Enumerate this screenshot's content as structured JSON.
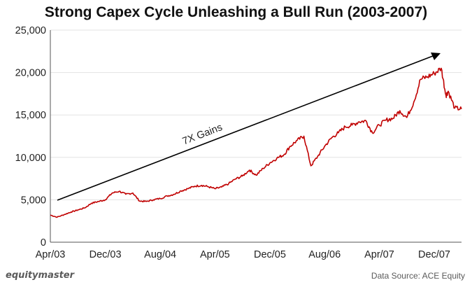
{
  "chart_data": {
    "type": "line",
    "title": "Strong Capex Cycle Unleashing a Bull Run (2003-2007)",
    "xlabel": "",
    "ylabel": "",
    "ylim": [
      0,
      25000
    ],
    "y_ticks": [
      0,
      5000,
      10000,
      15000,
      20000,
      25000
    ],
    "y_tick_labels": [
      "0",
      "5,000",
      "10,000",
      "15,000",
      "20,000",
      "25,000"
    ],
    "x_ticks": [
      "2003-04",
      "2003-12",
      "2004-08",
      "2005-04",
      "2005-12",
      "2006-08",
      "2007-04",
      "2007-12"
    ],
    "x_tick_labels": [
      "Apr/03",
      "Dec/03",
      "Aug/04",
      "Apr/05",
      "Dec/05",
      "Aug/06",
      "Apr/07",
      "Dec/07"
    ],
    "xlim": [
      "2003-04-01",
      "2008-03-31"
    ],
    "grid": true,
    "line_color": "#c00000",
    "series": [
      {
        "points": [
          [
            "2003-04-01",
            3200
          ],
          [
            "2003-05-01",
            2950
          ],
          [
            "2003-06-01",
            3250
          ],
          [
            "2003-07-01",
            3550
          ],
          [
            "2003-08-01",
            3800
          ],
          [
            "2003-09-01",
            4050
          ],
          [
            "2003-10-01",
            4600
          ],
          [
            "2003-11-01",
            4800
          ],
          [
            "2003-12-01",
            5000
          ],
          [
            "2004-01-01",
            5800
          ],
          [
            "2004-02-01",
            6000
          ],
          [
            "2004-03-01",
            5650
          ],
          [
            "2004-04-01",
            5800
          ],
          [
            "2004-05-01",
            4850
          ],
          [
            "2004-06-01",
            4800
          ],
          [
            "2004-07-01",
            5000
          ],
          [
            "2004-08-01",
            5150
          ],
          [
            "2004-09-01",
            5450
          ],
          [
            "2004-10-01",
            5650
          ],
          [
            "2004-11-01",
            6050
          ],
          [
            "2004-12-01",
            6300
          ],
          [
            "2005-01-01",
            6600
          ],
          [
            "2005-02-01",
            6700
          ],
          [
            "2005-03-01",
            6550
          ],
          [
            "2005-04-01",
            6300
          ],
          [
            "2005-05-01",
            6500
          ],
          [
            "2005-06-01",
            6900
          ],
          [
            "2005-07-01",
            7450
          ],
          [
            "2005-08-01",
            7800
          ],
          [
            "2005-09-01",
            8500
          ],
          [
            "2005-10-01",
            7900
          ],
          [
            "2005-11-01",
            8700
          ],
          [
            "2005-12-01",
            9350
          ],
          [
            "2006-01-01",
            9900
          ],
          [
            "2006-02-01",
            10300
          ],
          [
            "2006-03-01",
            11300
          ],
          [
            "2006-04-01",
            12000
          ],
          [
            "2006-05-01",
            12500
          ],
          [
            "2006-06-01",
            9000
          ],
          [
            "2006-07-01",
            10100
          ],
          [
            "2006-08-01",
            11300
          ],
          [
            "2006-09-01",
            12300
          ],
          [
            "2006-10-01",
            12900
          ],
          [
            "2006-11-01",
            13600
          ],
          [
            "2006-12-01",
            13800
          ],
          [
            "2007-01-01",
            14200
          ],
          [
            "2007-02-01",
            14300
          ],
          [
            "2007-03-01",
            12900
          ],
          [
            "2007-04-01",
            13800
          ],
          [
            "2007-05-01",
            14400
          ],
          [
            "2007-06-01",
            14600
          ],
          [
            "2007-07-01",
            15500
          ],
          [
            "2007-08-01",
            14700
          ],
          [
            "2007-09-01",
            16500
          ],
          [
            "2007-10-01",
            19200
          ],
          [
            "2007-11-01",
            19500
          ],
          [
            "2007-12-01",
            19900
          ],
          [
            "2008-01-01",
            20500
          ],
          [
            "2008-01-22",
            17300
          ],
          [
            "2008-02-01",
            17800
          ],
          [
            "2008-03-01",
            15800
          ],
          [
            "2008-03-31",
            15700
          ]
        ]
      }
    ],
    "annotations": [
      {
        "text": "7X Gains",
        "type": "arrow"
      }
    ]
  },
  "footer": {
    "brand": "equitymaster",
    "source": "Data Source: ACE Equity"
  }
}
